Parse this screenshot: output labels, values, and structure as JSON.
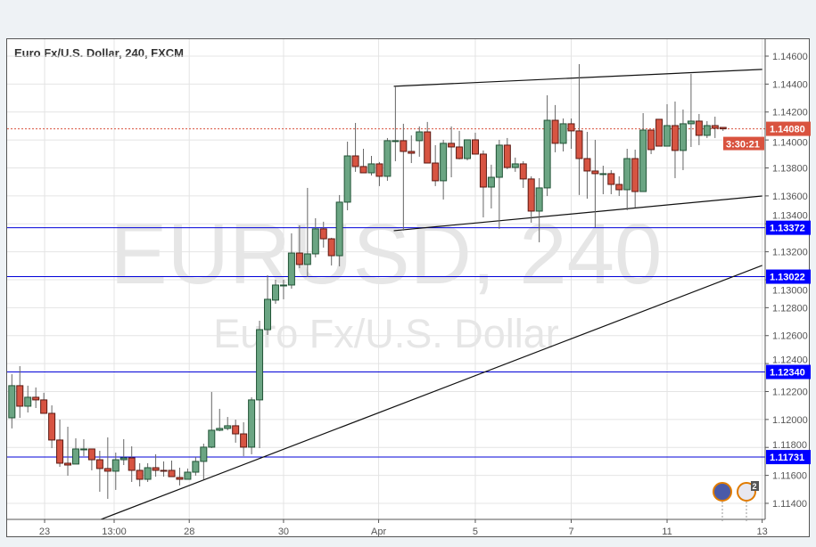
{
  "header": {
    "title": "Euro Fx/U.S. Dollar, 240, FXCM"
  },
  "watermark": {
    "symbol": "EURUSD, 240",
    "description": "Euro Fx/U.S. Dollar"
  },
  "price_labels": {
    "last_price": "1.14080",
    "countdown": "3:30:21"
  },
  "event_badge_count": "2",
  "colors": {
    "up": "#6ba583",
    "up_border": "#225437",
    "down": "#d75442",
    "down_border": "#5b1a13",
    "last_price": "#d9533f",
    "level_label": "#0000ff"
  },
  "chart_data": {
    "type": "candlestick",
    "title": "Euro Fx/U.S. Dollar, 240, FXCM",
    "ylim": [
      1.113,
      1.1475
    ],
    "y_ticks": [
      "1.14600",
      "1.14400",
      "1.14200",
      "1.14000",
      "1.13800",
      "1.13600",
      "1.13400",
      "1.13200",
      "1.13000",
      "1.12800",
      "1.12600",
      "1.12400",
      "1.12200",
      "1.12000",
      "1.11800",
      "1.11600",
      "1.11400"
    ],
    "x_ticks": [
      {
        "label": "23",
        "bar": 4.1
      },
      {
        "label": "13:00",
        "bar": 12.8
      },
      {
        "label": "28",
        "bar": 22.2
      },
      {
        "label": "30",
        "bar": 34
      },
      {
        "label": "Apr",
        "bar": 45.9
      },
      {
        "label": "5",
        "bar": 58
      },
      {
        "label": "7",
        "bar": 70
      },
      {
        "label": "11",
        "bar": 82
      },
      {
        "label": "13",
        "bar": 93.9
      }
    ],
    "grid": true,
    "ohlc": [
      [
        1.12012,
        1.12324,
        1.11936,
        1.12242
      ],
      [
        1.12242,
        1.12382,
        1.12012,
        1.12095
      ],
      [
        1.12095,
        1.12242,
        1.1205,
        1.12159
      ],
      [
        1.12159,
        1.12229,
        1.12082,
        1.1214
      ],
      [
        1.1214,
        1.12191,
        1.12044,
        1.12044
      ],
      [
        1.12044,
        1.12101,
        1.11795,
        1.11853
      ],
      [
        1.11853,
        1.11999,
        1.11661,
        1.11687
      ],
      [
        1.11687,
        1.11948,
        1.11598,
        1.11674
      ],
      [
        1.11681,
        1.11865,
        1.11681,
        1.11789
      ],
      [
        1.11789,
        1.11859,
        1.11738,
        1.11789
      ],
      [
        1.11789,
        1.11789,
        1.11636,
        1.11712
      ],
      [
        1.11712,
        1.11776,
        1.11483,
        1.11649
      ],
      [
        1.11649,
        1.11872,
        1.11432,
        1.1163
      ],
      [
        1.1163,
        1.11763,
        1.11496,
        1.11712
      ],
      [
        1.11712,
        1.11859,
        1.11674,
        1.11725
      ],
      [
        1.11725,
        1.11808,
        1.11553,
        1.11636
      ],
      [
        1.11636,
        1.11687,
        1.11521,
        1.11572
      ],
      [
        1.11572,
        1.11687,
        1.11553,
        1.11655
      ],
      [
        1.11655,
        1.11751,
        1.11591,
        1.11636
      ],
      [
        1.11636,
        1.117,
        1.11591,
        1.1163
      ],
      [
        1.11636,
        1.11706,
        1.11591,
        1.11591
      ],
      [
        1.11585,
        1.11655,
        1.11528,
        1.11572
      ],
      [
        1.11572,
        1.11649,
        1.11572,
        1.11623
      ],
      [
        1.11623,
        1.11732,
        1.11598,
        1.117
      ],
      [
        1.117,
        1.11827,
        1.11572,
        1.11802
      ],
      [
        1.11802,
        1.12197,
        1.11795,
        1.11923
      ],
      [
        1.11923,
        1.12076,
        1.11916,
        1.11936
      ],
      [
        1.11936,
        1.12018,
        1.11923,
        1.11955
      ],
      [
        1.11955,
        1.11999,
        1.11834,
        1.11897
      ],
      [
        1.11897,
        1.1198,
        1.11738,
        1.11802
      ],
      [
        1.11802,
        1.12159,
        1.11751,
        1.1214
      ],
      [
        1.1214,
        1.12707,
        1.11795,
        1.12643
      ],
      [
        1.12643,
        1.13032,
        1.12605,
        1.1286
      ],
      [
        1.12854,
        1.13,
        1.12828,
        1.12962
      ],
      [
        1.12962,
        1.13,
        1.1286,
        1.12962
      ],
      [
        1.12962,
        1.13332,
        1.12936,
        1.13191
      ],
      [
        1.13191,
        1.13389,
        1.13083,
        1.13109
      ],
      [
        1.13109,
        1.13657,
        1.13019,
        1.13185
      ],
      [
        1.13185,
        1.1344,
        1.1316,
        1.13364
      ],
      [
        1.13364,
        1.13415,
        1.1323,
        1.13293
      ],
      [
        1.13293,
        1.133,
        1.13102,
        1.13172
      ],
      [
        1.13172,
        1.13606,
        1.13096,
        1.13555
      ],
      [
        1.13555,
        1.13988,
        1.13497,
        1.13886
      ],
      [
        1.13886,
        1.14122,
        1.13772,
        1.1381
      ],
      [
        1.1381,
        1.13937,
        1.13765,
        1.13765
      ],
      [
        1.13765,
        1.13886,
        1.13746,
        1.13829
      ],
      [
        1.13829,
        1.13842,
        1.1367,
        1.1374
      ],
      [
        1.1374,
        1.14014,
        1.13708,
        1.13995
      ],
      [
        1.13995,
        1.14384,
        1.13848,
        1.13995
      ],
      [
        1.13995,
        1.14116,
        1.13351,
        1.13918
      ],
      [
        1.13918,
        1.14033,
        1.13835,
        1.13905
      ],
      [
        1.13995,
        1.14097,
        1.1388,
        1.14058
      ],
      [
        1.14058,
        1.14129,
        1.13835,
        1.13835
      ],
      [
        1.13835,
        1.13963,
        1.1367,
        1.13708
      ],
      [
        1.13708,
        1.14001,
        1.13574,
        1.13976
      ],
      [
        1.13976,
        1.14097,
        1.13733,
        1.1395
      ],
      [
        1.1395,
        1.14065,
        1.13861,
        1.13867
      ],
      [
        1.13867,
        1.14001,
        1.13854,
        1.14001
      ],
      [
        1.14001,
        1.14052,
        1.13899,
        1.13899
      ],
      [
        1.13899,
        1.13925,
        1.13446,
        1.13663
      ],
      [
        1.13663,
        1.13823,
        1.1351,
        1.13733
      ],
      [
        1.13733,
        1.14001,
        1.13364,
        1.13963
      ],
      [
        1.13963,
        1.14014,
        1.13791,
        1.13803
      ],
      [
        1.13803,
        1.13874,
        1.13772,
        1.13829
      ],
      [
        1.13829,
        1.13848,
        1.13657,
        1.13721
      ],
      [
        1.13721,
        1.1374,
        1.13408,
        1.13491
      ],
      [
        1.13491,
        1.13727,
        1.13268,
        1.13657
      ],
      [
        1.13657,
        1.1432,
        1.13599,
        1.14141
      ],
      [
        1.14141,
        1.1425,
        1.13912,
        1.13976
      ],
      [
        1.13976,
        1.14154,
        1.13918,
        1.14116
      ],
      [
        1.14116,
        1.14154,
        1.13937,
        1.14065
      ],
      [
        1.14065,
        1.14543,
        1.13606,
        1.13867
      ],
      [
        1.13867,
        1.14058,
        1.1358,
        1.13778
      ],
      [
        1.13778,
        1.14001,
        1.13376,
        1.13759
      ],
      [
        1.13759,
        1.13816,
        1.13612,
        1.13759
      ],
      [
        1.13759,
        1.13784,
        1.13612,
        1.13682
      ],
      [
        1.13682,
        1.1374,
        1.13599,
        1.13644
      ],
      [
        1.13644,
        1.13937,
        1.13497,
        1.13867
      ],
      [
        1.13867,
        1.13931,
        1.13517,
        1.13631
      ],
      [
        1.13631,
        1.14192,
        1.13631,
        1.14071
      ],
      [
        1.14071,
        1.14071,
        1.13899,
        1.13931
      ],
      [
        1.14148,
        1.14148,
        1.13956,
        1.13956
      ],
      [
        1.13956,
        1.14256,
        1.13956,
        1.14103
      ],
      [
        1.14103,
        1.14275,
        1.13727,
        1.13925
      ],
      [
        1.13925,
        1.14218,
        1.13784,
        1.14116
      ],
      [
        1.14116,
        1.14473,
        1.1395,
        1.14135
      ],
      [
        1.14135,
        1.14186,
        1.13963,
        1.14033
      ],
      [
        1.14033,
        1.14135,
        1.14014,
        1.14103
      ],
      [
        1.14103,
        1.14167,
        1.14014,
        1.14084
      ],
      [
        1.1409,
        1.1409,
        1.14065,
        1.1408
      ]
    ],
    "horizontal_levels": [
      {
        "price": 1.13372,
        "label": "1.13372"
      },
      {
        "price": 1.13022,
        "label": "1.13022"
      },
      {
        "price": 1.1234,
        "label": "1.12340"
      },
      {
        "price": 1.11731,
        "label": "1.11731"
      }
    ],
    "trendlines": [
      {
        "from": [
          47.8,
          1.14384
        ],
        "to": [
          93.9,
          1.14505
        ]
      },
      {
        "from": [
          47.8,
          1.13351
        ],
        "to": [
          93.9,
          1.13599
        ]
      },
      {
        "from": [
          10.0,
          1.1126
        ],
        "to": [
          93.9,
          1.13102
        ]
      }
    ]
  }
}
